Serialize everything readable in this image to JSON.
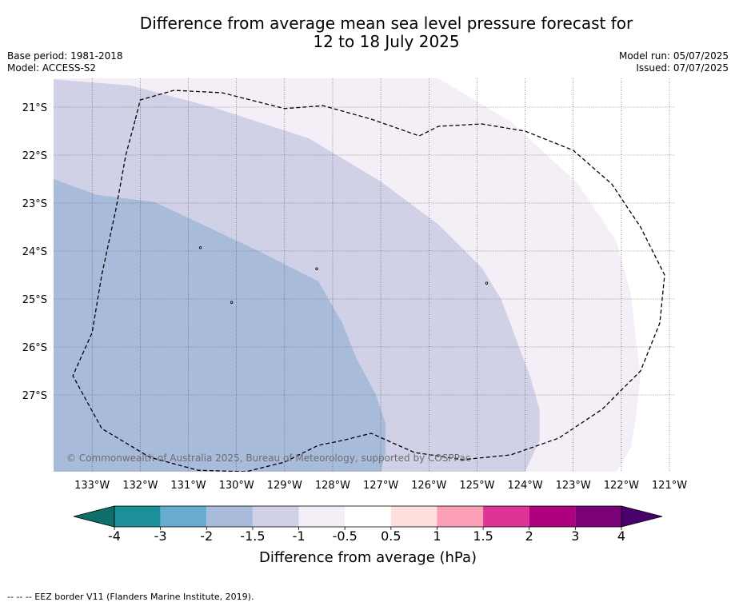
{
  "title_line1": "Difference from average mean sea level pressure forecast for",
  "title_line2": "12 to 18 July 2025",
  "base_period": "Base period: 1981-2018",
  "model": "Model: ACCESS-S2",
  "model_run": "Model run: 05/07/2025",
  "issued": "Issued: 07/07/2025",
  "copyright": "© Commonwealth of Australia 2025, Bureau of Meteorology, supported by COSPPac",
  "footnote": "--  --  -- EEZ border V11 (Flanders Marine Institute, 2019).",
  "colorbar_label": "Difference from average (hPa)",
  "chart_data": {
    "type": "heatmap",
    "lon_range": [
      -133.8,
      -120.9
    ],
    "lat_range": [
      -28.6,
      -20.4
    ],
    "x_ticks": [
      {
        "lon": -133,
        "label": "133°W"
      },
      {
        "lon": -132,
        "label": "132°W"
      },
      {
        "lon": -131,
        "label": "131°W"
      },
      {
        "lon": -130,
        "label": "130°W"
      },
      {
        "lon": -129,
        "label": "129°W"
      },
      {
        "lon": -128,
        "label": "128°W"
      },
      {
        "lon": -127,
        "label": "127°W"
      },
      {
        "lon": -126,
        "label": "126°W"
      },
      {
        "lon": -125,
        "label": "125°W"
      },
      {
        "lon": -124,
        "label": "124°W"
      },
      {
        "lon": -123,
        "label": "123°W"
      },
      {
        "lon": -122,
        "label": "122°W"
      },
      {
        "lon": -121,
        "label": "121°W"
      }
    ],
    "y_ticks": [
      {
        "lat": -21,
        "label": "21°S"
      },
      {
        "lat": -22,
        "label": "22°S"
      },
      {
        "lat": -23,
        "label": "23°S"
      },
      {
        "lat": -24,
        "label": "24°S"
      },
      {
        "lat": -25,
        "label": "25°S"
      },
      {
        "lat": -26,
        "label": "26°S"
      },
      {
        "lat": -27,
        "label": "27°S"
      }
    ],
    "colorbar": {
      "ticks": [
        "-4",
        "-3",
        "-2",
        "-1.5",
        "-1",
        "-0.5",
        "0.5",
        "1",
        "1.5",
        "2",
        "3",
        "4"
      ],
      "colors": [
        "#1b9099",
        "#68abd0",
        "#a8bbdb",
        "#d0d1e6",
        "#f4eef6",
        "#ffffff",
        "#fde0dd",
        "#fa9fb5",
        "#dd3497",
        "#ae017e",
        "#7a0177"
      ],
      "under_color": "#0e6f6a",
      "over_color": "#49006a"
    },
    "regions": [
      {
        "range": "-2 to -1.5",
        "color": "#a8bbdb",
        "boundary": [
          [
            -133.8,
            -22.5
          ],
          [
            -132.9,
            -22.83
          ],
          [
            -131.7,
            -22.98
          ],
          [
            -130.7,
            -23.45
          ],
          [
            -129.5,
            -24.02
          ],
          [
            -128.3,
            -24.63
          ],
          [
            -127.8,
            -25.5
          ],
          [
            -127.5,
            -26.25
          ],
          [
            -127.1,
            -27.0
          ],
          [
            -126.9,
            -27.6
          ],
          [
            -126.9,
            -28.2
          ],
          [
            -127.0,
            -28.6
          ],
          [
            -133.8,
            -28.6
          ]
        ]
      },
      {
        "range": "-1.5 to -1",
        "color": "#d0d1e6",
        "boundary": [
          [
            -133.8,
            -20.42
          ],
          [
            -132.2,
            -20.55
          ],
          [
            -130.5,
            -21.0
          ],
          [
            -128.5,
            -21.65
          ],
          [
            -127.0,
            -22.55
          ],
          [
            -125.8,
            -23.45
          ],
          [
            -124.9,
            -24.35
          ],
          [
            -124.5,
            -25.0
          ],
          [
            -124.2,
            -25.8
          ],
          [
            -123.9,
            -26.6
          ],
          [
            -123.7,
            -27.3
          ],
          [
            -123.7,
            -27.95
          ],
          [
            -124.0,
            -28.6
          ],
          [
            -133.8,
            -28.6
          ]
        ]
      },
      {
        "range": "-1 to -0.5",
        "color": "#f4eef6",
        "boundary": [
          [
            -133.8,
            -20.4
          ],
          [
            -125.8,
            -20.4
          ],
          [
            -124.3,
            -21.3
          ],
          [
            -122.9,
            -22.6
          ],
          [
            -122.1,
            -23.8
          ],
          [
            -121.8,
            -24.9
          ],
          [
            -121.7,
            -25.8
          ],
          [
            -121.6,
            -26.6
          ],
          [
            -121.7,
            -27.5
          ],
          [
            -121.8,
            -28.1
          ],
          [
            -122.1,
            -28.6
          ],
          [
            -133.8,
            -28.6
          ]
        ]
      }
    ],
    "eez_border": [
      [
        -132.1,
        -21.25
      ],
      [
        -132.0,
        -20.85
      ],
      [
        -131.3,
        -20.65
      ],
      [
        -130.3,
        -20.7
      ],
      [
        -129.0,
        -21.03
      ],
      [
        -128.2,
        -20.97
      ],
      [
        -127.2,
        -21.25
      ],
      [
        -126.2,
        -21.6
      ],
      [
        -125.8,
        -21.4
      ],
      [
        -124.9,
        -21.35
      ],
      [
        -124.0,
        -21.5
      ],
      [
        -123.0,
        -21.9
      ],
      [
        -122.2,
        -22.6
      ],
      [
        -121.6,
        -23.5
      ],
      [
        -121.1,
        -24.5
      ],
      [
        -121.2,
        -25.5
      ],
      [
        -121.6,
        -26.5
      ],
      [
        -122.4,
        -27.3
      ],
      [
        -123.3,
        -27.9
      ],
      [
        -124.3,
        -28.25
      ],
      [
        -125.3,
        -28.35
      ],
      [
        -126.3,
        -28.2
      ],
      [
        -127.2,
        -27.8
      ],
      [
        -127.8,
        -27.95
      ],
      [
        -128.3,
        -28.05
      ],
      [
        -129.0,
        -28.4
      ],
      [
        -129.8,
        -28.6
      ],
      [
        -130.8,
        -28.57
      ],
      [
        -131.8,
        -28.3
      ],
      [
        -132.8,
        -27.7
      ],
      [
        -133.4,
        -26.6
      ],
      [
        -133.0,
        -25.7
      ],
      [
        -132.8,
        -24.5
      ],
      [
        -132.5,
        -23.1
      ],
      [
        -132.3,
        -22.0
      ],
      [
        -132.1,
        -21.25
      ]
    ],
    "islands": [
      {
        "lon": -130.75,
        "lat": -23.93
      },
      {
        "lon": -128.33,
        "lat": -24.37
      },
      {
        "lon": -130.1,
        "lat": -25.07
      },
      {
        "lon": -124.8,
        "lat": -24.67
      }
    ]
  }
}
